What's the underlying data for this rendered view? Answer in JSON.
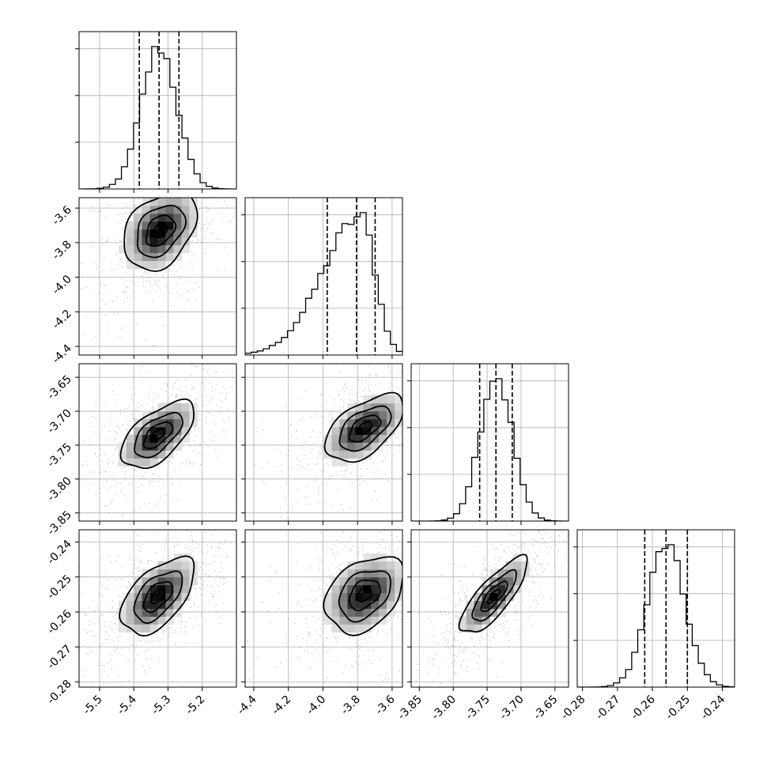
{
  "chart_data": {
    "type": "corner",
    "colors": {
      "frame": "#000000",
      "grid": "#b0b0b0",
      "hist": "#000000",
      "quantile": "#000000",
      "points": "#8c8c8c"
    },
    "quantiles": [
      0.16,
      0.5,
      0.84
    ],
    "params": [
      {
        "range": [
          -5.56,
          -5.1
        ],
        "ticks": [
          "-5.5",
          "-5.4",
          "-5.3",
          "-5.2"
        ],
        "tick_values": [
          -5.5,
          -5.4,
          -5.3,
          -5.2
        ],
        "mean": -5.326,
        "sd": 0.052,
        "skew": 0,
        "quantile_values": [
          -5.384,
          -5.326,
          -5.268
        ]
      },
      {
        "range": [
          -4.45,
          -3.54
        ],
        "ticks": [
          "-4.4",
          "-4.2",
          "-4.0",
          "-3.8",
          "-3.6"
        ],
        "tick_values": [
          -4.4,
          -4.2,
          -4.0,
          -3.8,
          -3.6
        ],
        "mean": -3.78,
        "sd": 0.11,
        "skew": 1,
        "quantile_values": [
          -3.975,
          -3.806,
          -3.698
        ]
      },
      {
        "range": [
          -3.862,
          -3.63
        ],
        "ticks": [
          "-3.85",
          "-3.80",
          "-3.75",
          "-3.70",
          "-3.65"
        ],
        "tick_values": [
          -3.85,
          -3.8,
          -3.75,
          -3.7,
          -3.65
        ],
        "mean": -3.737,
        "sd": 0.024,
        "skew": 0,
        "quantile_values": [
          -3.761,
          -3.737,
          -3.713
        ]
      },
      {
        "range": [
          -0.2815,
          -0.2365
        ],
        "ticks": [
          "-0.28",
          "-0.27",
          "-0.26",
          "-0.25",
          "-0.24"
        ],
        "tick_values": [
          -0.28,
          -0.27,
          -0.26,
          -0.25,
          -0.24
        ],
        "mean": -0.2561,
        "sd": 0.0053,
        "skew": 0,
        "quantile_values": [
          -0.2622,
          -0.2561,
          -0.25
        ]
      }
    ],
    "panels_2d": [
      {
        "row": 1,
        "col": 0,
        "peak": [
          -5.323,
          -3.73
        ],
        "rho": 0.35
      },
      {
        "row": 2,
        "col": 0,
        "peak": [
          -5.33,
          -3.735
        ],
        "rho": 0.6
      },
      {
        "row": 2,
        "col": 1,
        "peak": [
          -3.76,
          -3.725
        ],
        "rho": 0.55
      },
      {
        "row": 3,
        "col": 0,
        "peak": [
          -5.33,
          -0.2555
        ],
        "rho": 0.55
      },
      {
        "row": 3,
        "col": 1,
        "peak": [
          -3.76,
          -0.255
        ],
        "rho": 0.35
      },
      {
        "row": 3,
        "col": 2,
        "peak": [
          -3.74,
          -0.2555
        ],
        "rho": 0.8
      }
    ]
  }
}
